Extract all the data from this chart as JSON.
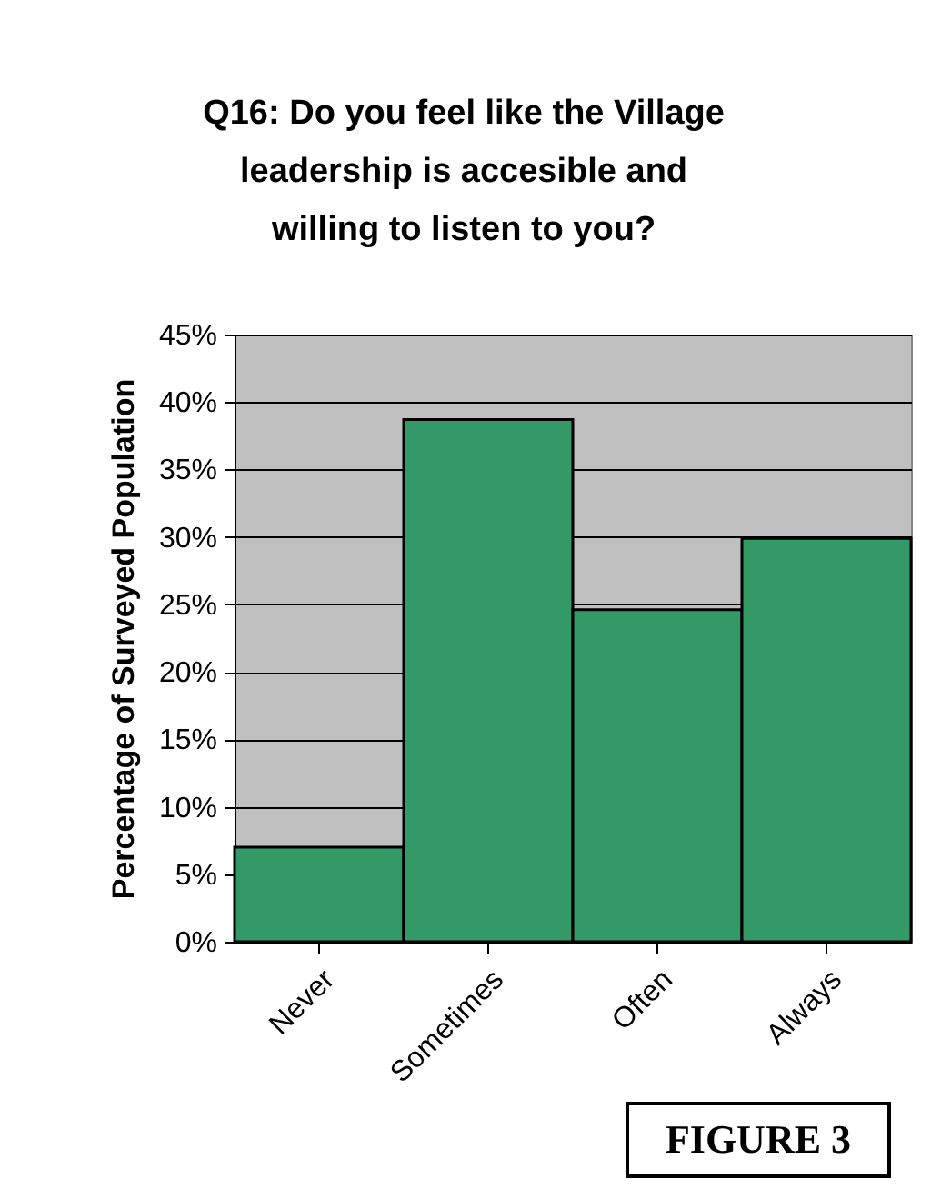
{
  "chart_data": {
    "type": "bar",
    "title": "Q16: Do you feel like the Village leadership is accesible and willing to listen to you?",
    "ylabel": "Percentage of Surveyed Population",
    "categories": [
      "Never",
      "Sometimes",
      "Often",
      "Always"
    ],
    "values": [
      7,
      38.7,
      24.6,
      29.9
    ],
    "color": "#339966",
    "ylim": [
      0,
      45
    ],
    "yticks": [
      {
        "value": 0,
        "label": "0%"
      },
      {
        "value": 5,
        "label": "5%"
      },
      {
        "value": 10,
        "label": "10%"
      },
      {
        "value": 15,
        "label": "15%"
      },
      {
        "value": 20,
        "label": "20%"
      },
      {
        "value": 25,
        "label": "25%"
      },
      {
        "value": 30,
        "label": "30%"
      },
      {
        "value": 35,
        "label": "35%"
      },
      {
        "value": 40,
        "label": "40%"
      },
      {
        "value": 45,
        "label": "45%"
      }
    ],
    "grid": "y",
    "annotations": [
      "FIGURE 3"
    ]
  }
}
